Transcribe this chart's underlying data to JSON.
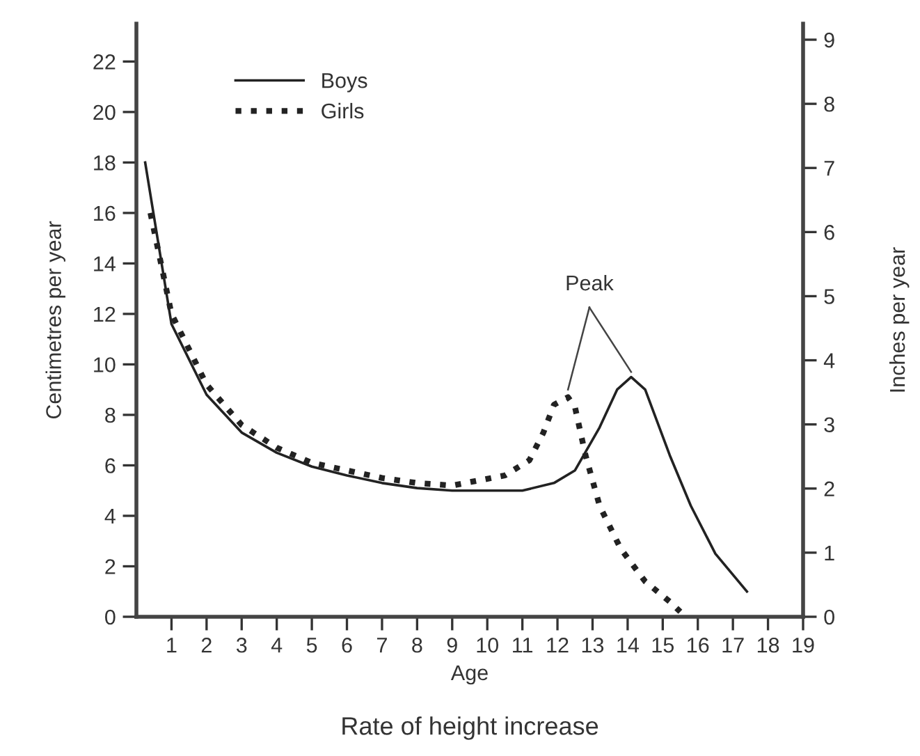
{
  "chart_data": {
    "type": "line",
    "title": "Rate of height increase",
    "xlabel": "Age",
    "ylabel": "Centimetres per year",
    "y2label": "Inches per year",
    "series": [
      {
        "name": "Boys",
        "color": "#222222",
        "line_style": "solid",
        "x": [
          0.25,
          1,
          2,
          3,
          4,
          5,
          6,
          7,
          8,
          9,
          10,
          11,
          11.9,
          12.5,
          13.2,
          13.7,
          14.1,
          14.5,
          15.2,
          15.8,
          16.5,
          17.4
        ],
        "values": [
          18,
          11.6,
          8.8,
          7.3,
          6.5,
          5.95,
          5.6,
          5.3,
          5.1,
          5.0,
          5.0,
          5.0,
          5.3,
          5.8,
          7.5,
          9.0,
          9.5,
          9.0,
          6.4,
          4.4,
          2.5,
          1.0
        ]
      },
      {
        "name": "Girls",
        "color": "#222222",
        "line_style": "dotted",
        "x": [
          0.4,
          1,
          2,
          3,
          4,
          5,
          6,
          7,
          8,
          9,
          10.5,
          11.2,
          11.6,
          11.9,
          12.3,
          12.5,
          12.8,
          13.2,
          13.8,
          14.5,
          15.2,
          15.5
        ],
        "values": [
          16.0,
          12.0,
          9.2,
          7.6,
          6.7,
          6.1,
          5.8,
          5.5,
          5.3,
          5.2,
          5.6,
          6.2,
          7.3,
          8.4,
          8.7,
          8.3,
          6.4,
          4.4,
          2.7,
          1.4,
          0.6,
          0.2
        ]
      }
    ],
    "annotations": [
      {
        "text": "Peak",
        "x": 14.1,
        "y": 9.5
      }
    ],
    "xlim": [
      0,
      19
    ],
    "xticks": [
      1,
      2,
      3,
      4,
      5,
      6,
      7,
      8,
      9,
      10,
      11,
      12,
      13,
      14,
      15,
      16,
      17,
      18,
      19
    ],
    "ylim": [
      0,
      23.5
    ],
    "yticks": [
      0,
      2,
      4,
      6,
      8,
      10,
      12,
      14,
      16,
      18,
      20,
      22
    ],
    "y2lim": [
      0,
      9.25
    ],
    "y2ticks": [
      0,
      1,
      2,
      3,
      4,
      5,
      6,
      7,
      8,
      9
    ],
    "legend": "top left",
    "grid": false,
    "marker": "none"
  }
}
